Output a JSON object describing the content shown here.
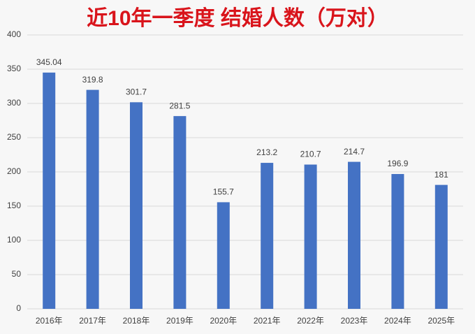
{
  "chart_data": {
    "type": "bar",
    "title": "近10年一季度 结婚人数（万对）",
    "categories": [
      "2016年",
      "2017年",
      "2018年",
      "2019年",
      "2020年",
      "2021年",
      "2022年",
      "2023年",
      "2024年",
      "2025年"
    ],
    "values": [
      345.04,
      319.8,
      301.7,
      281.5,
      155.7,
      213.2,
      210.7,
      214.7,
      196.9,
      181
    ],
    "color": "#4472c4",
    "title_color": "#d9141b",
    "ylim": [
      0,
      400
    ],
    "yticks": [
      0,
      50,
      100,
      150,
      200,
      250,
      300,
      350,
      400
    ],
    "grid": true
  }
}
